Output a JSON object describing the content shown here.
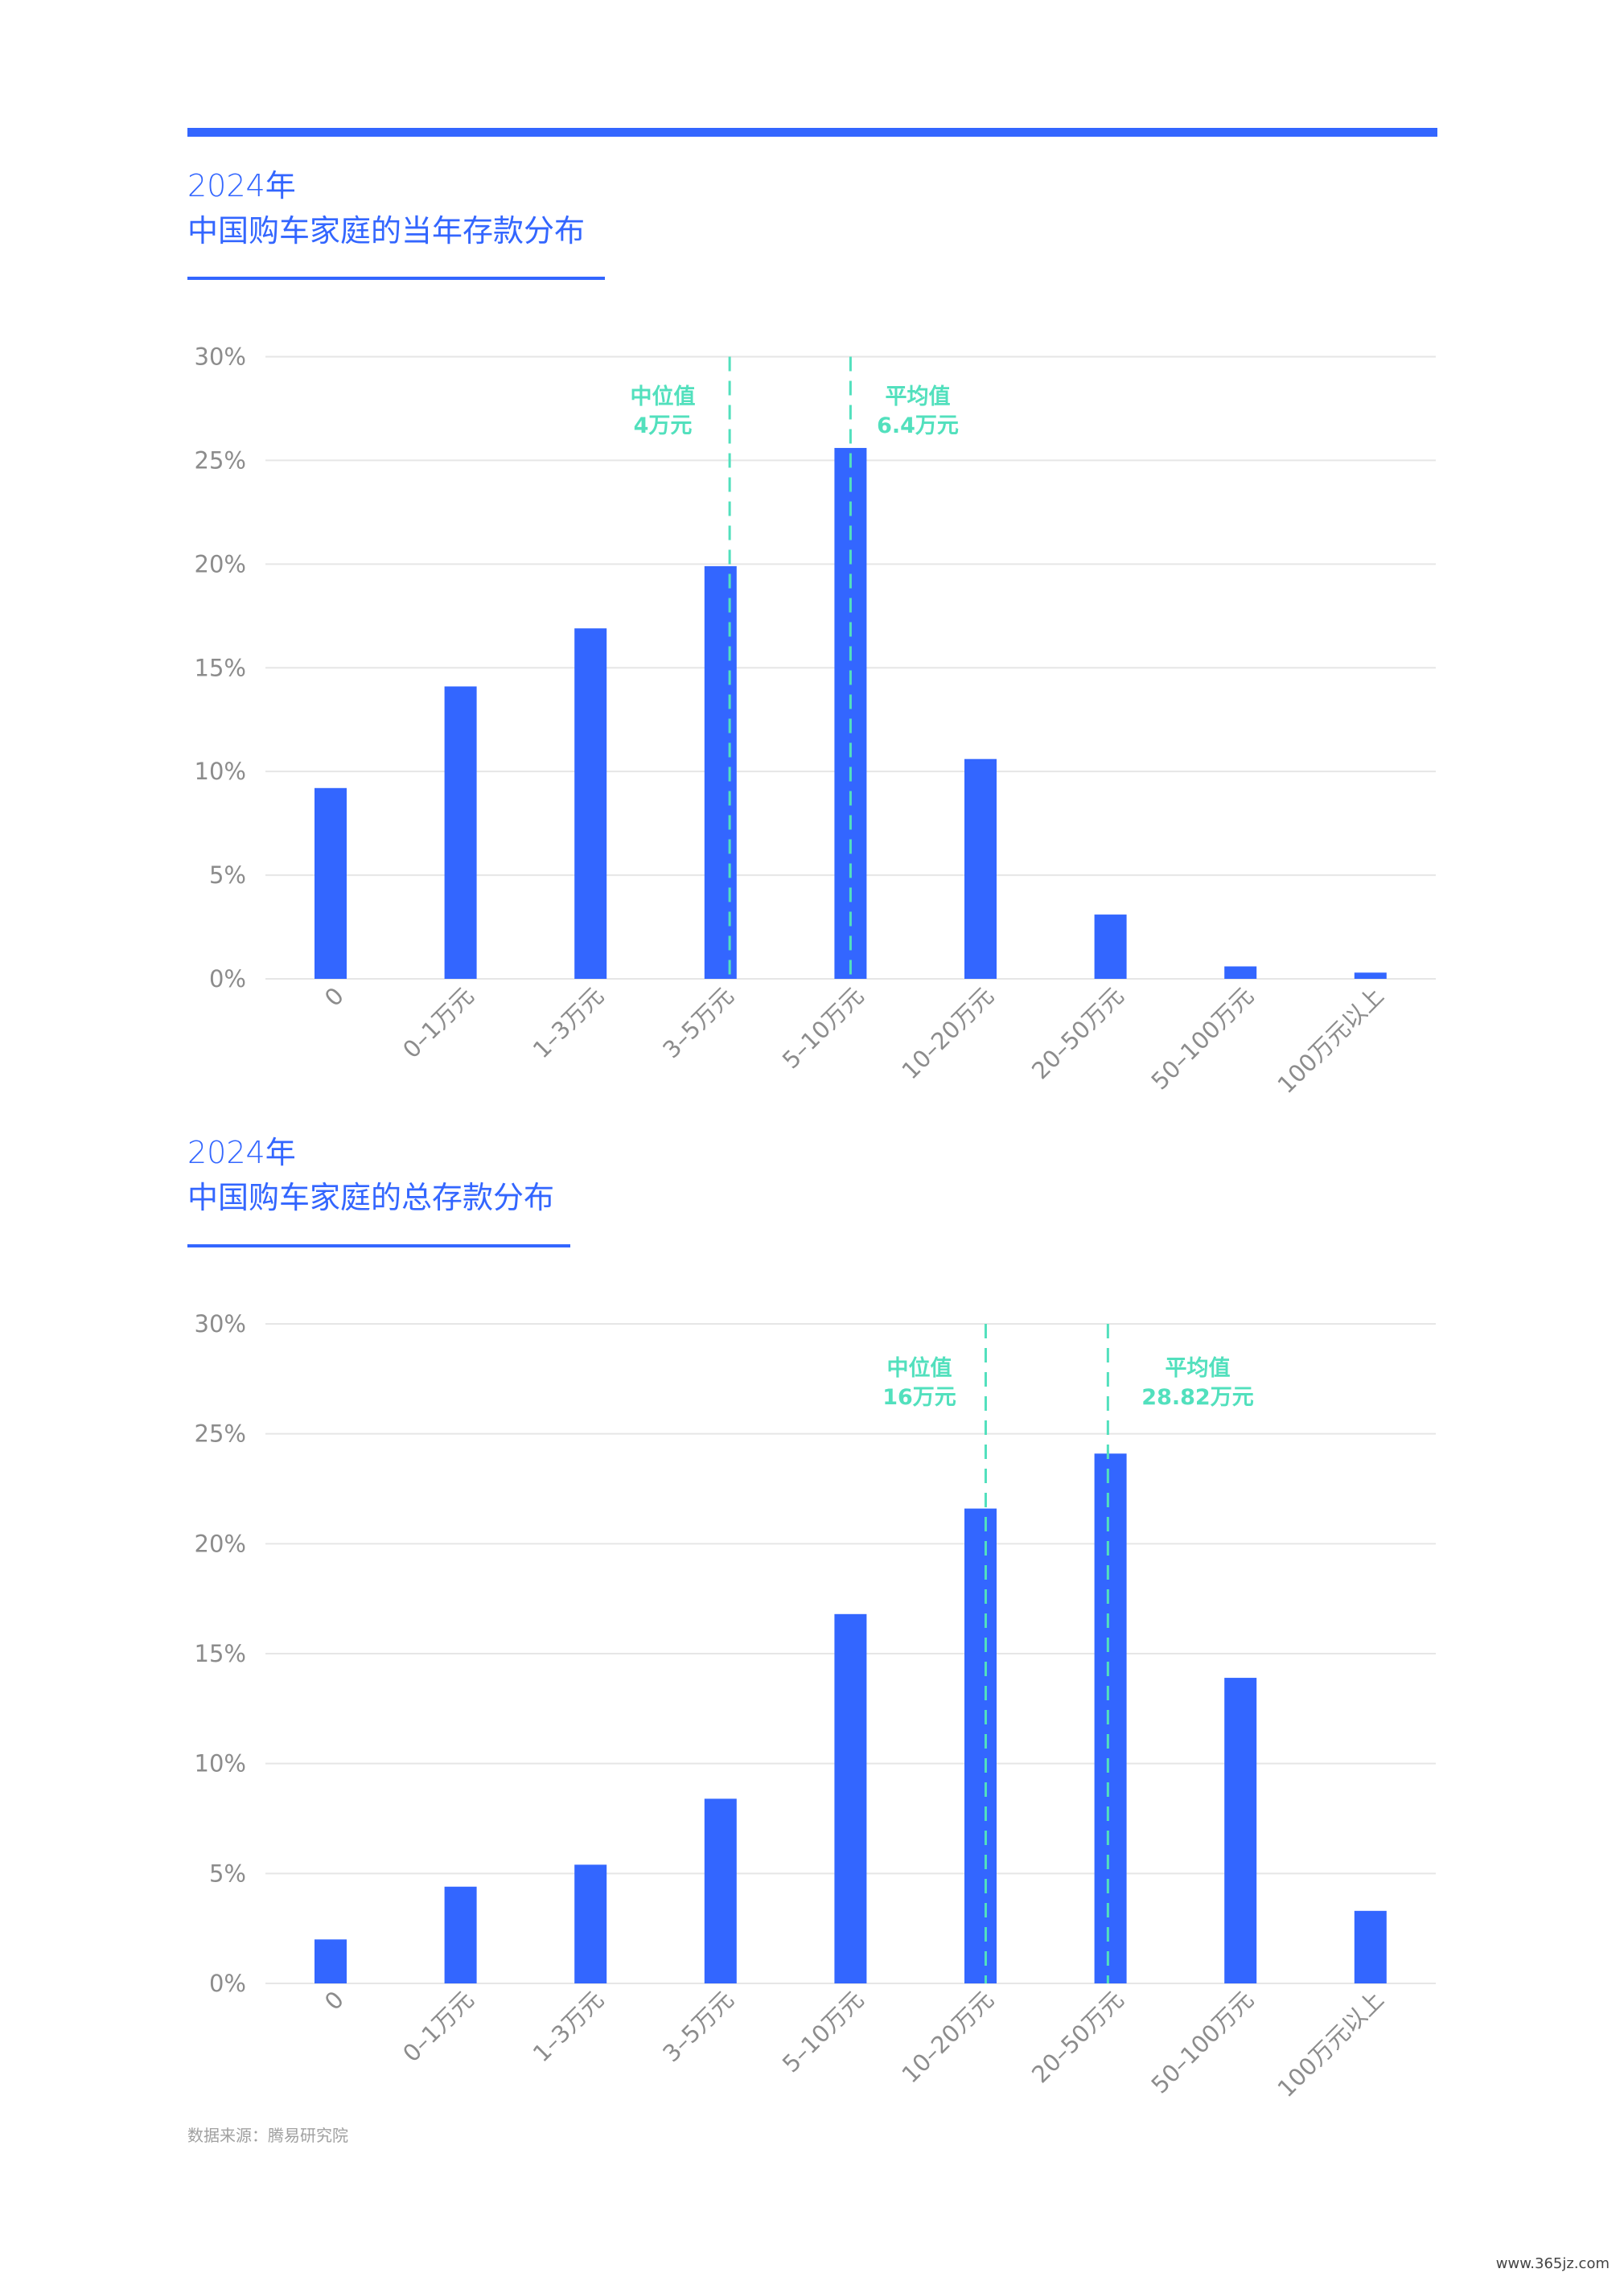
{
  "colors": {
    "accent": "#3366ff",
    "marker": "#52e0bd",
    "axis_text": "#8c8c8c",
    "grid": "#e6e6e6",
    "source_text": "#a0a0a0",
    "watermark_text": "#444444"
  },
  "chart_data": [
    {
      "type": "bar",
      "title": "2024年",
      "subtitle": "中国购车家庭的当年存款分布",
      "categories": [
        "0",
        "0–1万元",
        "1–3万元",
        "3–5万元",
        "5–10万元",
        "10–20万元",
        "20–50万元",
        "50–100万元",
        "100万元以上"
      ],
      "values": [
        9.2,
        14.1,
        16.9,
        19.9,
        25.6,
        10.6,
        3.1,
        0.6,
        0.3
      ],
      "unit": "%",
      "ylim": [
        0,
        30
      ],
      "yticks": [
        0,
        5,
        10,
        15,
        20,
        25,
        30
      ],
      "ytick_labels": [
        "0%",
        "5%",
        "10%",
        "15%",
        "20%",
        "25%",
        "30%"
      ],
      "grid": true,
      "markers": [
        {
          "label": "中位值",
          "value": "4万元"
        },
        {
          "label": "平均值",
          "value": "6.4万元"
        }
      ]
    },
    {
      "type": "bar",
      "title": "2024年",
      "subtitle": "中国购车家庭的总存款分布",
      "categories": [
        "0",
        "0–1万元",
        "1–3万元",
        "3–5万元",
        "5–10万元",
        "10–20万元",
        "20–50万元",
        "50–100万元",
        "100万元以上"
      ],
      "values": [
        2.0,
        4.4,
        5.4,
        8.4,
        16.8,
        21.6,
        24.1,
        13.9,
        3.3
      ],
      "unit": "%",
      "ylim": [
        0,
        30
      ],
      "yticks": [
        0,
        5,
        10,
        15,
        20,
        25,
        30
      ],
      "ytick_labels": [
        "0%",
        "5%",
        "10%",
        "15%",
        "20%",
        "25%",
        "30%"
      ],
      "grid": true,
      "markers": [
        {
          "label": "中位值",
          "value": "16万元"
        },
        {
          "label": "平均值",
          "value": "28.82万元"
        }
      ]
    }
  ],
  "source": "数据来源：腾易研究院",
  "watermark": "www.365jz.com"
}
